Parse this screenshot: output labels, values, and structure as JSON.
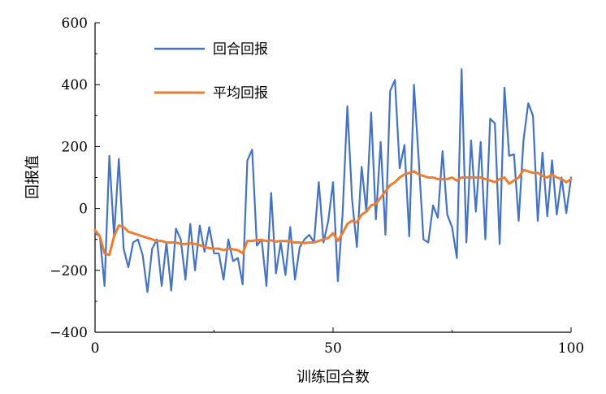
{
  "chart_data": {
    "type": "line",
    "xlabel": "训练回合数",
    "ylabel": "回报值",
    "xlim": [
      0,
      100
    ],
    "ylim": [
      -400,
      600
    ],
    "xticks": [
      0,
      50,
      100
    ],
    "yticks": [
      -400,
      -200,
      0,
      200,
      400,
      600
    ],
    "legend_position": "top-left",
    "grid": false,
    "x": [
      0,
      1,
      2,
      3,
      4,
      5,
      6,
      7,
      8,
      9,
      10,
      11,
      12,
      13,
      14,
      15,
      16,
      17,
      18,
      19,
      20,
      21,
      22,
      23,
      24,
      25,
      26,
      27,
      28,
      29,
      30,
      31,
      32,
      33,
      34,
      35,
      36,
      37,
      38,
      39,
      40,
      41,
      42,
      43,
      44,
      45,
      46,
      47,
      48,
      49,
      50,
      51,
      52,
      53,
      54,
      55,
      56,
      57,
      58,
      59,
      60,
      61,
      62,
      63,
      64,
      65,
      66,
      67,
      68,
      69,
      70,
      71,
      72,
      73,
      74,
      75,
      76,
      77,
      78,
      79,
      80,
      81,
      82,
      83,
      84,
      85,
      86,
      87,
      88,
      89,
      90,
      91,
      92,
      93,
      94,
      95,
      96,
      97,
      98,
      99,
      100
    ],
    "series": [
      {
        "name": "回合回报",
        "color": "#4472c4",
        "values": [
          -80,
          -90,
          -250,
          170,
          -90,
          160,
          -130,
          -190,
          -110,
          -100,
          -150,
          -270,
          -130,
          -100,
          -250,
          -110,
          -265,
          -65,
          -100,
          -230,
          -50,
          -200,
          -55,
          -140,
          -60,
          -145,
          -145,
          -230,
          -100,
          -170,
          -160,
          -245,
          155,
          190,
          -120,
          -100,
          -250,
          50,
          -210,
          -110,
          -215,
          -60,
          -230,
          -125,
          -100,
          -85,
          -110,
          85,
          -110,
          -40,
          85,
          -235,
          -20,
          330,
          30,
          -125,
          135,
          -10,
          310,
          -35,
          215,
          -85,
          380,
          415,
          130,
          205,
          -90,
          400,
          155,
          -100,
          -110,
          10,
          -30,
          185,
          -20,
          -60,
          -160,
          450,
          -110,
          220,
          -10,
          215,
          -100,
          290,
          275,
          -115,
          390,
          170,
          175,
          -40,
          220,
          340,
          300,
          -40,
          180,
          -25,
          155,
          -20,
          100,
          -15,
          100
        ]
      },
      {
        "name": "平均回报",
        "color": "#ed7d31",
        "values": [
          -70,
          -90,
          -145,
          -150,
          -90,
          -55,
          -60,
          -75,
          -80,
          -85,
          -90,
          -95,
          -100,
          -105,
          -105,
          -110,
          -110,
          -110,
          -115,
          -115,
          -112,
          -115,
          -118,
          -125,
          -128,
          -130,
          -130,
          -135,
          -130,
          -132,
          -135,
          -145,
          -105,
          -105,
          -102,
          -102,
          -105,
          -103,
          -107,
          -105,
          -105,
          -107,
          -110,
          -110,
          -112,
          -110,
          -110,
          -105,
          -100,
          -95,
          -80,
          -105,
          -80,
          -50,
          -40,
          -45,
          -20,
          -10,
          10,
          15,
          35,
          55,
          75,
          85,
          100,
          110,
          115,
          120,
          110,
          105,
          100,
          100,
          95,
          95,
          95,
          100,
          90,
          100,
          100,
          100,
          100,
          100,
          95,
          90,
          85,
          95,
          100,
          80,
          90,
          100,
          125,
          120,
          115,
          115,
          105,
          100,
          110,
          100,
          95,
          85,
          95
        ]
      }
    ]
  }
}
